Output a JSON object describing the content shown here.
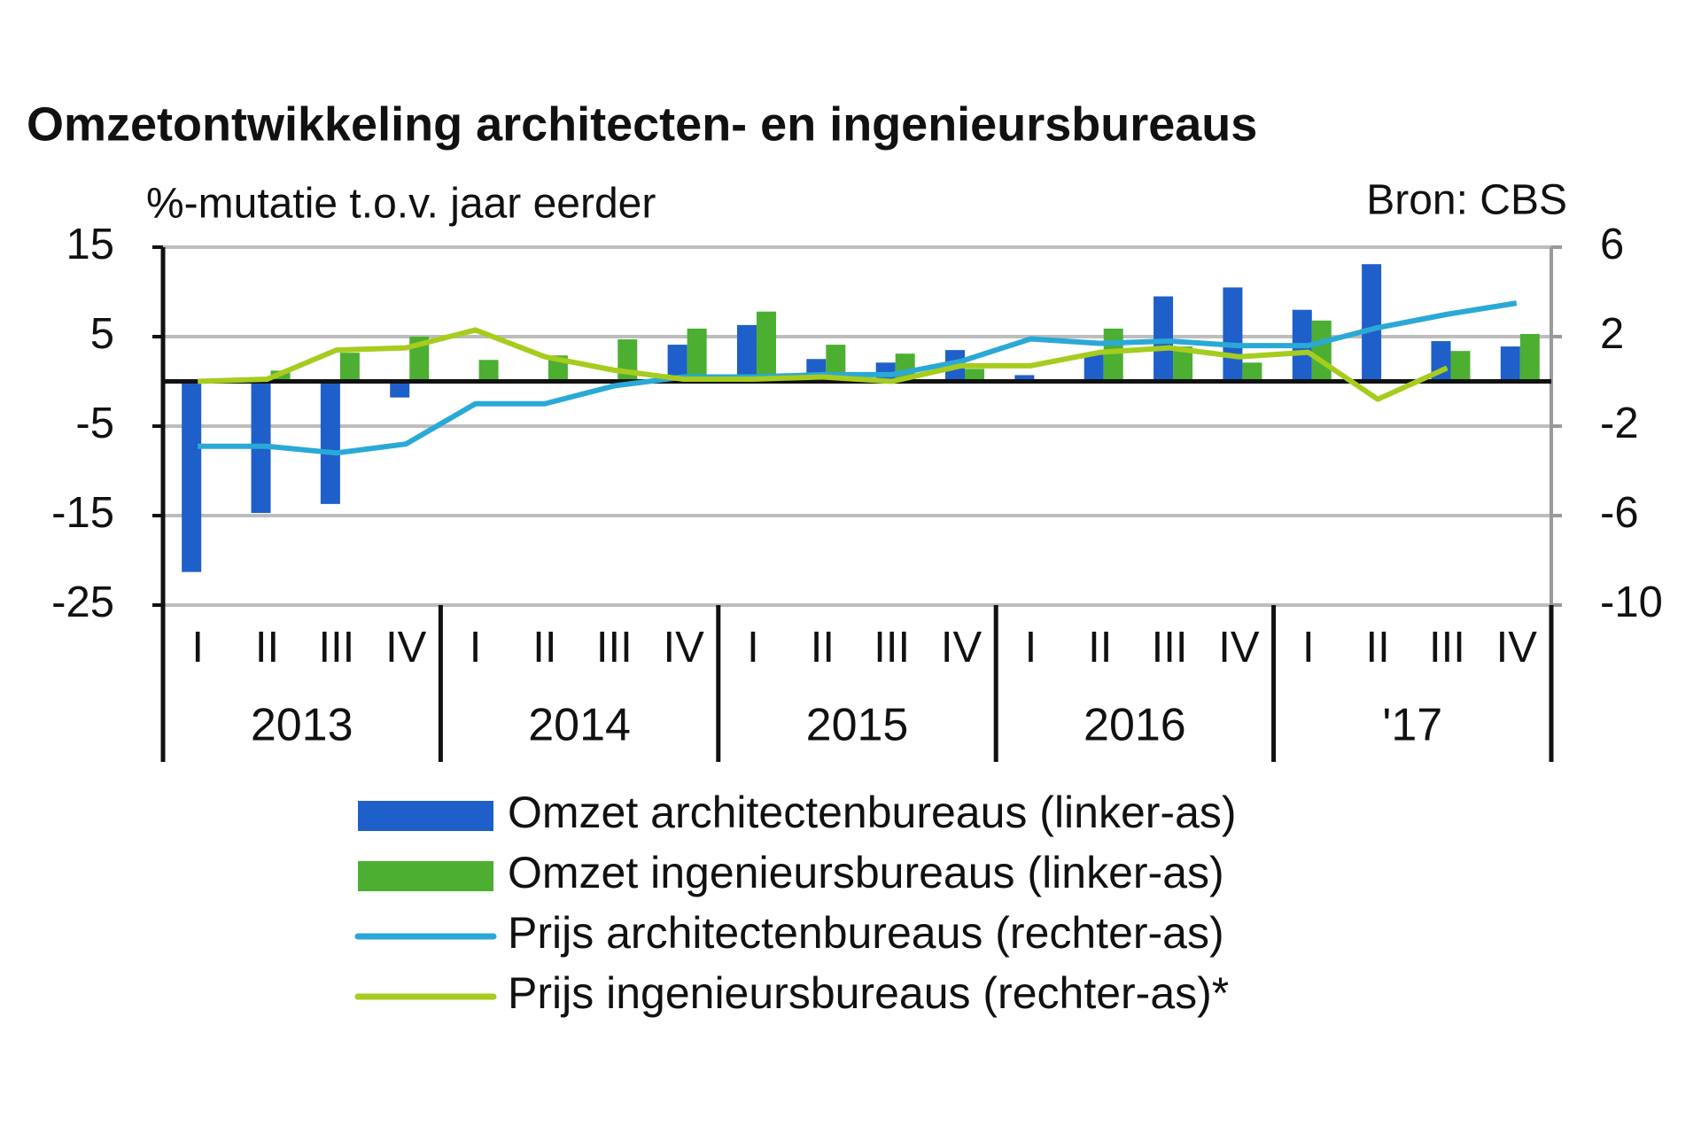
{
  "chart_data": {
    "type": "bar",
    "title": "Omzetontwikkeling architecten- en ingenieursbureaus",
    "y_axis_label": "%-mutatie t.o.v. jaar eerder",
    "source": "Bron: CBS",
    "categories": [
      "I",
      "II",
      "III",
      "IV",
      "I",
      "II",
      "III",
      "IV",
      "I",
      "II",
      "III",
      "IV",
      "I",
      "II",
      "III",
      "IV",
      "I",
      "II",
      "III",
      "IV"
    ],
    "years": [
      "2013",
      "2014",
      "2015",
      "2016",
      "'17"
    ],
    "ylim": [
      -25,
      15
    ],
    "yticks": [
      -25,
      -15,
      -5,
      5,
      15
    ],
    "y2lim": [
      -10,
      6
    ],
    "y2ticks": [
      -10,
      -6,
      -2,
      2,
      6
    ],
    "grid": true,
    "series": [
      {
        "name": "Omzet architectenbureaus (linker-as)",
        "type": "bar",
        "color": "#1f5fc9",
        "values": [
          -21.3,
          -14.7,
          -13.7,
          -1.8,
          0.2,
          0.2,
          0,
          4.1,
          6.3,
          2.5,
          2.1,
          3.5,
          0.7,
          3.0,
          9.5,
          10.5,
          8.0,
          13.1,
          4.5,
          3.9
        ]
      },
      {
        "name": "Omzet ingenieursbureaus (linker-as)",
        "type": "bar",
        "color": "#4caf32",
        "values": [
          0.2,
          1.2,
          3.2,
          5.0,
          2.4,
          2.9,
          4.7,
          5.9,
          7.8,
          4.1,
          3.1,
          1.4,
          0.2,
          5.9,
          3.9,
          2.1,
          6.8,
          0,
          3.4,
          5.3
        ]
      },
      {
        "name": "Prijs architectenbureaus (rechter-as)",
        "type": "line",
        "axis": "y2",
        "color": "#2aa9d6",
        "values": [
          -2.9,
          -2.9,
          -3.2,
          -2.8,
          -1.0,
          -1.0,
          -0.2,
          0.2,
          0.2,
          0.3,
          0.3,
          0.9,
          1.9,
          1.7,
          1.8,
          1.6,
          1.6,
          2.4,
          3.0,
          3.5
        ]
      },
      {
        "name": "Prijs ingenieursbureaus (rechter-as)*",
        "type": "line",
        "axis": "y2",
        "color": "#a6cc1e",
        "values": [
          0,
          0.1,
          1.4,
          1.5,
          2.3,
          1.1,
          0.5,
          0.1,
          0.1,
          0.2,
          0,
          0.7,
          0.7,
          1.3,
          1.5,
          1.1,
          1.3,
          -0.8,
          0.6,
          null
        ]
      }
    ]
  }
}
